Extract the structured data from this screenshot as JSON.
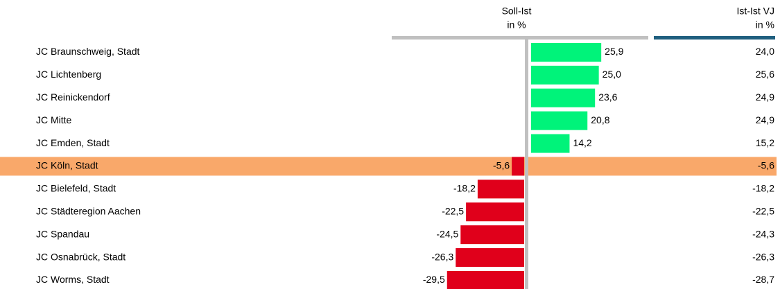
{
  "chart_data": {
    "type": "hbar",
    "columns": [
      {
        "header": [
          "Soll-Ist",
          "in %"
        ],
        "color": "#c0c0c0"
      },
      {
        "header": [
          "Ist-Ist VJ",
          "in %"
        ],
        "color": "#1f5f7f"
      }
    ],
    "categories": [
      "JC Braunschweig, Stadt",
      "JC Lichtenberg",
      "JC Reinickendorf",
      "JC Mitte",
      "JC Emden, Stadt",
      "JC Köln, Stadt",
      "JC Bielefeld, Stadt",
      "JC Städteregion Aachen",
      "JC Spandau",
      "JC Osnabrück, Stadt",
      "JC Worms, Stadt"
    ],
    "values": [
      25.9,
      25.0,
      23.6,
      20.8,
      14.2,
      -5.6,
      -18.2,
      -22.5,
      -24.5,
      -26.3,
      -29.5
    ],
    "value_labels": [
      "25,9",
      "25,0",
      "23,6",
      "20,8",
      "14,2",
      "-5,6",
      "-18,2",
      "-22,5",
      "-24,5",
      "-26,3",
      "-29,5"
    ],
    "ist_ist_vj": [
      24.0,
      25.6,
      24.9,
      24.9,
      15.2,
      -5.6,
      -18.2,
      -22.5,
      -24.3,
      -26.3,
      -28.7
    ],
    "ist_ist_vj_labels": [
      "24,0",
      "25,6",
      "24,9",
      "24,9",
      "15,2",
      "-5,6",
      "-18,2",
      "-22,5",
      "-24,3",
      "-26,3",
      "-28,7"
    ],
    "xlim": [
      -32,
      32
    ],
    "positive_color": "#00f37a",
    "negative_color": "#e0001b",
    "highlight_index": 5,
    "highlight_color": "#f9a86a",
    "axis_color": "#c0c0c0"
  }
}
